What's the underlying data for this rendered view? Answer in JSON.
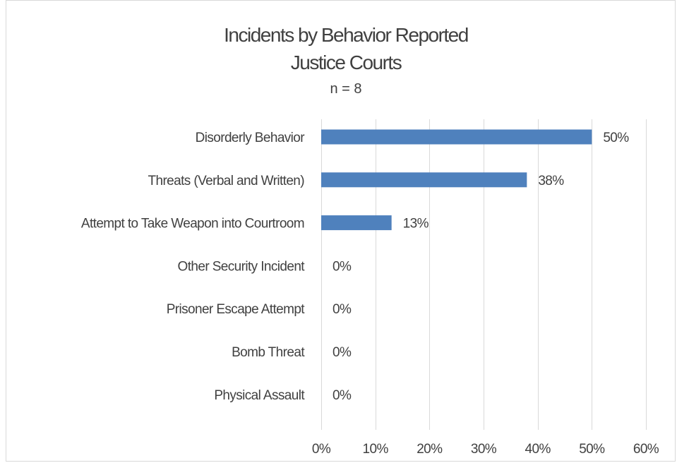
{
  "chart_data": {
    "type": "bar",
    "orientation": "horizontal",
    "title": "Incidents by Behavior Reported",
    "subtitle": "Justice Courts",
    "note": "n = 8",
    "categories": [
      "Disorderly Behavior",
      "Threats (Verbal and Written)",
      "Attempt to Take Weapon into Courtroom",
      "Other Security Incident",
      "Prisoner Escape Attempt",
      "Bomb Threat",
      "Physical Assault"
    ],
    "values": [
      50,
      38,
      13,
      0,
      0,
      0,
      0
    ],
    "value_labels": [
      "50%",
      "38%",
      "13%",
      "0%",
      "0%",
      "0%",
      "0%"
    ],
    "xlim": [
      0,
      60
    ],
    "x_ticks": [
      0,
      10,
      20,
      30,
      40,
      50,
      60
    ],
    "x_tick_labels": [
      "0%",
      "10%",
      "20%",
      "30%",
      "40%",
      "50%",
      "60%"
    ],
    "xlabel": "",
    "ylabel": "",
    "grid": "vertical",
    "legend": "none",
    "bar_color": "#4f81bd"
  }
}
